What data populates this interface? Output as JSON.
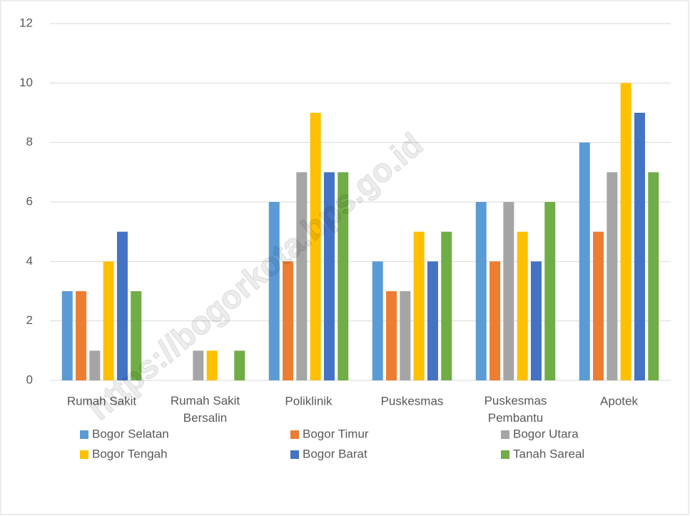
{
  "chart_data": {
    "type": "bar",
    "categories": [
      "Rumah Sakit",
      "Rumah Sakit\nBersalin",
      "Poliklinik",
      "Puskesmas",
      "Puskesmas\nPembantu",
      "Apotek"
    ],
    "series": [
      {
        "name": "Bogor Selatan",
        "color": "#5b9bd5",
        "values": [
          3,
          0,
          6,
          4,
          6,
          8
        ]
      },
      {
        "name": "Bogor Timur",
        "color": "#ed7d31",
        "values": [
          3,
          0,
          4,
          3,
          4,
          5
        ]
      },
      {
        "name": "Bogor Utara",
        "color": "#a5a5a5",
        "values": [
          1,
          1,
          7,
          3,
          6,
          7
        ]
      },
      {
        "name": "Bogor Tengah",
        "color": "#ffc000",
        "values": [
          4,
          1,
          9,
          5,
          5,
          10
        ]
      },
      {
        "name": "Bogor Barat",
        "color": "#4472c4",
        "values": [
          5,
          0,
          7,
          4,
          4,
          9
        ]
      },
      {
        "name": "Tanah Sareal",
        "color": "#70ad47",
        "values": [
          3,
          1,
          7,
          5,
          6,
          7
        ]
      }
    ],
    "ylim": [
      0,
      12
    ],
    "yticks": [
      0,
      2,
      4,
      6,
      8,
      10,
      12
    ],
    "grid": true,
    "legend": "bottom",
    "watermark": "https://bogorkota.bps.go.id"
  }
}
